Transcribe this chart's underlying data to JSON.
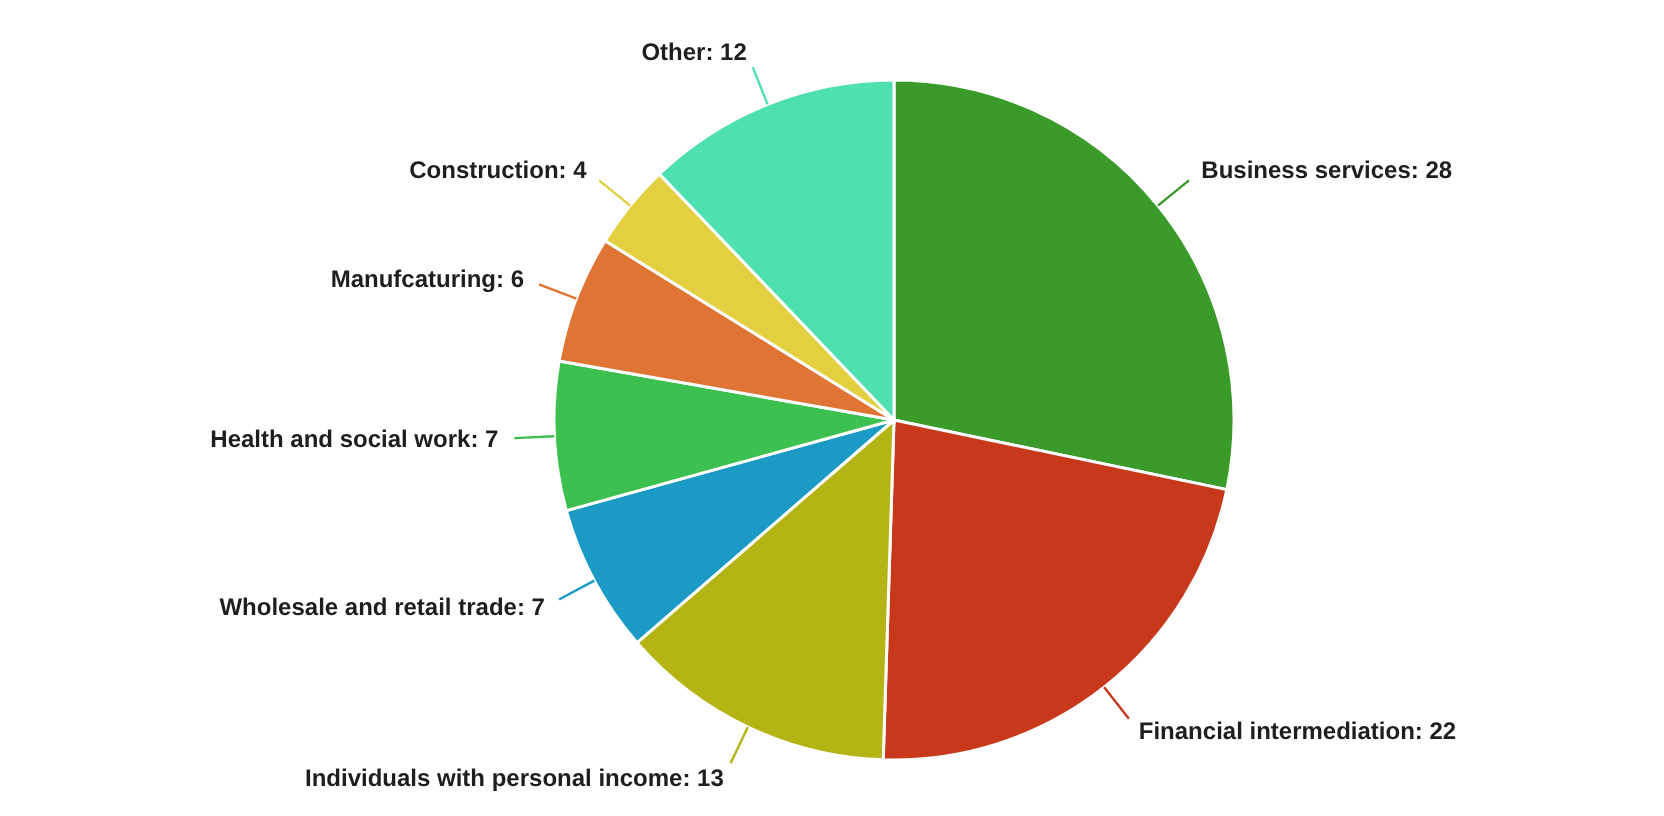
{
  "chart_data": {
    "type": "pie",
    "categories": [
      "Business services",
      "Financial intermediation",
      "Individuals with personal income",
      "Wholesale and retail trade",
      "Health and social work",
      "Manufcaturing",
      "Construction",
      "Other"
    ],
    "values": [
      28,
      22,
      13,
      7,
      7,
      6,
      4,
      12
    ],
    "colors": [
      "#3a9a2a",
      "#c8381a",
      "#b4b414",
      "#1a9ac4",
      "#3cc050",
      "#e07434",
      "#e2d040",
      "#4ee0b0"
    ],
    "value_labels": [
      ": 28",
      ": 22",
      ": 13",
      ": 7",
      ": 7",
      ": 6",
      ": 4",
      ": 12"
    ],
    "legend": false
  }
}
